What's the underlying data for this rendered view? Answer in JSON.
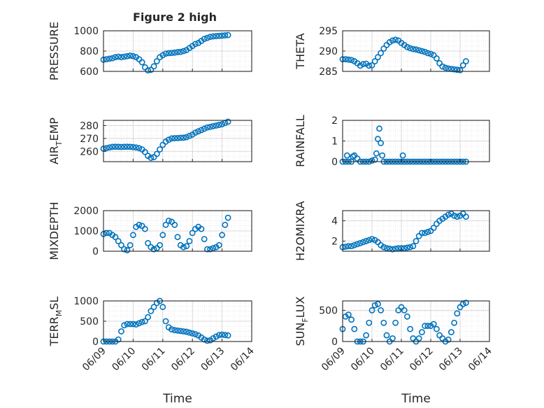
{
  "figure": {
    "title": "Figure 2 high",
    "marker_color": "#0072bd",
    "grid": true
  },
  "chart_data": [
    {
      "type": "scatter",
      "ylabel": "PRESSURE",
      "ylim": [
        600,
        1000
      ],
      "yticks": [
        "600",
        "800",
        "1000"
      ],
      "xlim": [
        0,
        5
      ],
      "x": [
        0.0,
        0.1,
        0.2,
        0.3,
        0.4,
        0.5,
        0.6,
        0.7,
        0.8,
        0.9,
        1.0,
        1.1,
        1.2,
        1.3,
        1.4,
        1.5,
        1.6,
        1.7,
        1.8,
        1.9,
        2.0,
        2.1,
        2.2,
        2.3,
        2.4,
        2.5,
        2.6,
        2.7,
        2.8,
        2.9,
        3.0,
        3.1,
        3.2,
        3.3,
        3.4,
        3.5,
        3.6,
        3.7,
        3.8,
        3.9,
        4.0,
        4.1,
        4.2
      ],
      "y": [
        715,
        720,
        725,
        730,
        740,
        745,
        740,
        745,
        750,
        755,
        750,
        740,
        720,
        690,
        640,
        610,
        615,
        650,
        700,
        740,
        760,
        775,
        780,
        782,
        785,
        790,
        792,
        800,
        810,
        830,
        850,
        870,
        880,
        900,
        920,
        930,
        940,
        945,
        948,
        950,
        952,
        955,
        958
      ]
    },
    {
      "type": "scatter",
      "ylabel": "THETA",
      "ylim": [
        285,
        295
      ],
      "yticks": [
        "285",
        "290",
        "295"
      ],
      "xlim": [
        0,
        5
      ],
      "x": [
        0.0,
        0.1,
        0.2,
        0.3,
        0.4,
        0.5,
        0.6,
        0.7,
        0.8,
        0.9,
        1.0,
        1.1,
        1.2,
        1.3,
        1.4,
        1.5,
        1.6,
        1.7,
        1.8,
        1.9,
        2.0,
        2.1,
        2.2,
        2.3,
        2.4,
        2.5,
        2.6,
        2.7,
        2.8,
        2.9,
        3.0,
        3.1,
        3.2,
        3.3,
        3.4,
        3.5,
        3.6,
        3.7,
        3.8,
        3.9,
        4.0,
        4.1,
        4.2
      ],
      "y": [
        288.0,
        288.0,
        287.9,
        287.8,
        287.5,
        287.0,
        286.4,
        286.8,
        286.9,
        286.4,
        286.5,
        287.5,
        288.5,
        289.5,
        290.6,
        291.5,
        292.2,
        292.6,
        292.8,
        292.6,
        292.0,
        291.5,
        291.0,
        290.7,
        290.5,
        290.4,
        290.2,
        290.0,
        289.8,
        289.5,
        289.3,
        289.0,
        288.2,
        287.0,
        286.2,
        285.9,
        285.7,
        285.6,
        285.5,
        285.4,
        285.3,
        286.5,
        287.5
      ]
    },
    {
      "type": "scatter",
      "ylabel": "AIR",
      "ylabel_sub": "T",
      "ylabel_tail": "EMP",
      "ylim": [
        252,
        284
      ],
      "yticks": [
        "260",
        "270",
        "280"
      ],
      "ytick_values": [
        260,
        270,
        280
      ],
      "xlim": [
        0,
        5
      ],
      "x": [
        0.0,
        0.1,
        0.2,
        0.3,
        0.4,
        0.5,
        0.6,
        0.7,
        0.8,
        0.9,
        1.0,
        1.1,
        1.2,
        1.3,
        1.4,
        1.5,
        1.6,
        1.7,
        1.8,
        1.9,
        2.0,
        2.1,
        2.2,
        2.3,
        2.4,
        2.5,
        2.6,
        2.7,
        2.8,
        2.9,
        3.0,
        3.1,
        3.2,
        3.3,
        3.4,
        3.5,
        3.6,
        3.7,
        3.8,
        3.9,
        4.0,
        4.1,
        4.2
      ],
      "y": [
        262,
        262.5,
        263,
        263.5,
        263.6,
        263.5,
        263.4,
        263.5,
        263.6,
        263.5,
        263.3,
        263,
        262.5,
        261.5,
        259.5,
        256.5,
        255,
        255.5,
        258,
        261.5,
        265,
        267.5,
        269,
        270,
        270.2,
        270.3,
        270.5,
        270.6,
        271,
        272,
        273,
        274.5,
        275.5,
        276.5,
        277.5,
        278.5,
        279,
        279.5,
        280,
        280.5,
        281,
        282,
        283
      ]
    },
    {
      "type": "scatter",
      "ylabel": "RAINFALL",
      "ylim": [
        0,
        2
      ],
      "yticks": [
        "0",
        "1",
        "2"
      ],
      "xlim": [
        0,
        5
      ],
      "x": [
        0.0,
        0.1,
        0.15,
        0.2,
        0.3,
        0.35,
        0.4,
        0.5,
        0.6,
        0.7,
        0.8,
        0.9,
        1.0,
        1.1,
        1.15,
        1.2,
        1.25,
        1.3,
        1.35,
        1.4,
        1.5,
        1.6,
        1.7,
        1.8,
        1.9,
        2.0,
        2.05,
        2.1,
        2.2,
        2.3,
        2.4,
        2.5,
        2.6,
        2.7,
        2.8,
        2.9,
        3.0,
        3.1,
        3.2,
        3.3,
        3.4,
        3.5,
        3.6,
        3.7,
        3.8,
        3.9,
        4.0,
        4.1,
        4.2
      ],
      "y": [
        0,
        0,
        0.3,
        0,
        0,
        0.25,
        0.3,
        0.15,
        0,
        0,
        0,
        0,
        0.05,
        0.1,
        0.4,
        1.1,
        1.6,
        0.9,
        0.3,
        0,
        0,
        0,
        0,
        0,
        0,
        0,
        0.3,
        0,
        0,
        0,
        0,
        0,
        0,
        0,
        0,
        0,
        0,
        0,
        0,
        0,
        0,
        0,
        0,
        0,
        0,
        0,
        0,
        0,
        0
      ]
    },
    {
      "type": "scatter",
      "ylabel": "MIXDEPTH",
      "ylim": [
        0,
        2000
      ],
      "yticks": [
        "0",
        "1000",
        "2000"
      ],
      "xlim": [
        0,
        5
      ],
      "x": [
        0.0,
        0.1,
        0.2,
        0.3,
        0.4,
        0.5,
        0.6,
        0.7,
        0.8,
        0.9,
        1.0,
        1.1,
        1.2,
        1.3,
        1.4,
        1.5,
        1.6,
        1.7,
        1.8,
        1.9,
        2.0,
        2.1,
        2.2,
        2.3,
        2.4,
        2.5,
        2.6,
        2.7,
        2.8,
        2.9,
        3.0,
        3.1,
        3.2,
        3.3,
        3.4,
        3.5,
        3.6,
        3.7,
        3.8,
        3.9,
        4.0,
        4.1,
        4.2
      ],
      "y": [
        850,
        900,
        900,
        800,
        700,
        500,
        300,
        100,
        50,
        300,
        800,
        1200,
        1300,
        1250,
        1100,
        400,
        200,
        100,
        150,
        300,
        800,
        1300,
        1500,
        1450,
        1300,
        700,
        300,
        200,
        250,
        500,
        900,
        1100,
        1200,
        1100,
        600,
        100,
        100,
        150,
        200,
        300,
        800,
        1300,
        1650
      ]
    },
    {
      "type": "scatter",
      "ylabel": "H2OMIXRA",
      "ylim": [
        1,
        5
      ],
      "yticks": [
        "2",
        "4"
      ],
      "ytick_values": [
        2,
        4
      ],
      "xlim": [
        0,
        5
      ],
      "x": [
        0.0,
        0.1,
        0.2,
        0.3,
        0.4,
        0.5,
        0.6,
        0.7,
        0.8,
        0.9,
        1.0,
        1.1,
        1.2,
        1.3,
        1.4,
        1.5,
        1.6,
        1.7,
        1.8,
        1.9,
        2.0,
        2.1,
        2.2,
        2.3,
        2.4,
        2.5,
        2.6,
        2.7,
        2.8,
        2.9,
        3.0,
        3.1,
        3.2,
        3.3,
        3.4,
        3.5,
        3.6,
        3.7,
        3.8,
        3.9,
        4.0,
        4.1,
        4.2
      ],
      "y": [
        1.4,
        1.45,
        1.5,
        1.5,
        1.6,
        1.7,
        1.8,
        1.9,
        2.0,
        2.1,
        2.2,
        2.1,
        1.9,
        1.6,
        1.4,
        1.3,
        1.25,
        1.2,
        1.25,
        1.3,
        1.3,
        1.3,
        1.35,
        1.4,
        1.5,
        2.0,
        2.5,
        2.8,
        2.8,
        2.9,
        3.0,
        3.3,
        3.7,
        4.0,
        4.2,
        4.4,
        4.6,
        4.7,
        4.5,
        4.4,
        4.5,
        4.7,
        4.4
      ]
    },
    {
      "type": "scatter",
      "ylabel": "TERR",
      "ylabel_sub": "M",
      "ylabel_tail": "SL",
      "ylim": [
        0,
        1000
      ],
      "yticks": [
        "0",
        "500",
        "1000"
      ],
      "xlim": [
        0,
        5
      ],
      "x": [
        0.0,
        0.1,
        0.2,
        0.3,
        0.4,
        0.5,
        0.6,
        0.7,
        0.8,
        0.9,
        1.0,
        1.1,
        1.2,
        1.3,
        1.4,
        1.5,
        1.6,
        1.7,
        1.8,
        1.9,
        2.0,
        2.1,
        2.2,
        2.3,
        2.4,
        2.5,
        2.6,
        2.7,
        2.8,
        2.9,
        3.0,
        3.1,
        3.2,
        3.3,
        3.4,
        3.5,
        3.6,
        3.7,
        3.8,
        3.9,
        4.0,
        4.1,
        4.2
      ],
      "y": [
        0,
        0,
        0,
        0,
        0,
        50,
        250,
        400,
        430,
        430,
        430,
        420,
        450,
        480,
        500,
        600,
        750,
        850,
        950,
        1000,
        850,
        500,
        350,
        300,
        280,
        270,
        260,
        250,
        240,
        220,
        200,
        180,
        150,
        100,
        50,
        20,
        30,
        80,
        120,
        160,
        170,
        160,
        150
      ]
    },
    {
      "type": "scatter",
      "ylabel": "SUN",
      "ylabel_sub": "F",
      "ylabel_tail": "LUX",
      "ylim": [
        0,
        650
      ],
      "yticks": [
        "0",
        "500"
      ],
      "ytick_values": [
        0,
        500
      ],
      "xlim": [
        0,
        5
      ],
      "xticks": [
        "06/09",
        "06/10",
        "06/11",
        "06/12",
        "06/13",
        "06/14"
      ],
      "xlabel": "Time",
      "x": [
        0.0,
        0.1,
        0.2,
        0.3,
        0.4,
        0.5,
        0.6,
        0.7,
        0.8,
        0.9,
        1.0,
        1.1,
        1.2,
        1.3,
        1.4,
        1.5,
        1.6,
        1.7,
        1.8,
        1.9,
        2.0,
        2.1,
        2.2,
        2.3,
        2.4,
        2.5,
        2.6,
        2.7,
        2.8,
        2.9,
        3.0,
        3.1,
        3.2,
        3.3,
        3.4,
        3.5,
        3.6,
        3.7,
        3.8,
        3.9,
        4.0,
        4.1,
        4.2
      ],
      "y": [
        200,
        400,
        430,
        350,
        200,
        0,
        0,
        0,
        100,
        300,
        500,
        580,
        600,
        500,
        300,
        100,
        0,
        50,
        300,
        500,
        550,
        500,
        400,
        200,
        50,
        0,
        50,
        150,
        250,
        250,
        250,
        280,
        200,
        100,
        50,
        0,
        30,
        150,
        300,
        450,
        550,
        600,
        620
      ]
    }
  ],
  "shared": {
    "xticks": [
      "06/09",
      "06/10",
      "06/11",
      "06/12",
      "06/13",
      "06/14"
    ],
    "xlabel": "Time"
  }
}
